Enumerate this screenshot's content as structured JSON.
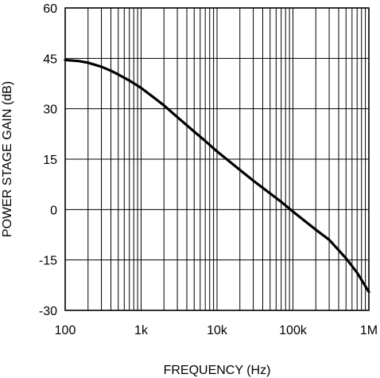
{
  "chart_data": {
    "type": "line",
    "title": "",
    "xlabel": "FREQUENCY (Hz)",
    "ylabel": "POWER STAGE GAIN (dB)",
    "x_scale": "log",
    "xlim": [
      100,
      1000000
    ],
    "ylim": [
      -30,
      60
    ],
    "grid": true,
    "legend": "none",
    "x_ticks": [
      {
        "value": 100,
        "label": "100"
      },
      {
        "value": 1000,
        "label": "1k"
      },
      {
        "value": 10000,
        "label": "10k"
      },
      {
        "value": 100000,
        "label": "100k"
      },
      {
        "value": 1000000,
        "label": "1M"
      }
    ],
    "y_ticks": [
      {
        "value": 60,
        "label": "60"
      },
      {
        "value": 45,
        "label": "45"
      },
      {
        "value": 30,
        "label": "30"
      },
      {
        "value": 15,
        "label": "15"
      },
      {
        "value": 0,
        "label": "0"
      },
      {
        "value": -15,
        "label": "-15"
      },
      {
        "value": -30,
        "label": "-30"
      }
    ],
    "series": [
      {
        "color": "#000000",
        "x": [
          100,
          150,
          200,
          300,
          400,
          500,
          700,
          1000,
          1500,
          2000,
          3000,
          5000,
          7000,
          10000,
          20000,
          30000,
          50000,
          70000,
          100000,
          200000,
          300000,
          500000,
          700000,
          1000000
        ],
        "y": [
          44.5,
          44.2,
          43.7,
          42.5,
          41.3,
          40.2,
          38.4,
          36.2,
          33.2,
          31.0,
          27.5,
          23.2,
          20.4,
          17.3,
          11.8,
          8.6,
          4.8,
          2.3,
          -0.6,
          -6.0,
          -9.0,
          -14.5,
          -18.8,
          -24.5
        ]
      }
    ]
  }
}
